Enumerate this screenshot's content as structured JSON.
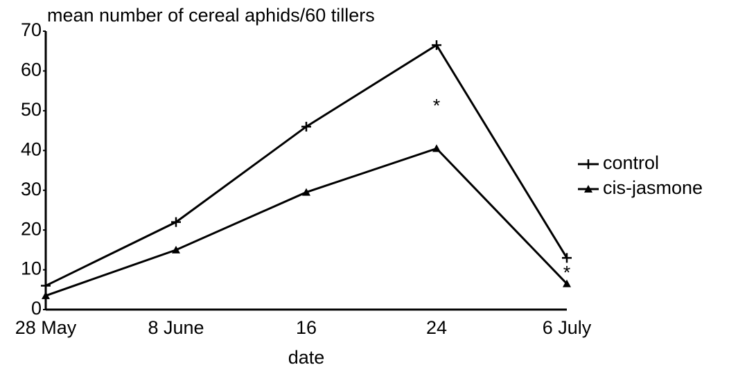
{
  "chart_data": {
    "type": "line",
    "title": "mean number of cereal aphids/60 tillers",
    "x_label": "date",
    "categories": [
      "28 May",
      "8 June",
      "16",
      "24",
      "6 July"
    ],
    "series": [
      {
        "name": "control",
        "color": "#000000",
        "marker": "plus",
        "values": [
          6,
          22,
          46,
          66.5,
          13
        ]
      },
      {
        "name": "cis-jasmone",
        "color": "#000000",
        "marker": "triangle",
        "values": [
          3.5,
          15,
          29.5,
          40.5,
          6.5
        ]
      }
    ],
    "annotations": [
      {
        "text": "*",
        "x": "24",
        "y": 52
      },
      {
        "text": "*",
        "x": "6 July",
        "y": 10
      }
    ],
    "ylim": [
      0,
      70
    ],
    "yticks": [
      0,
      10,
      20,
      30,
      40,
      50,
      60,
      70
    ],
    "grid": false,
    "legend": "right"
  }
}
